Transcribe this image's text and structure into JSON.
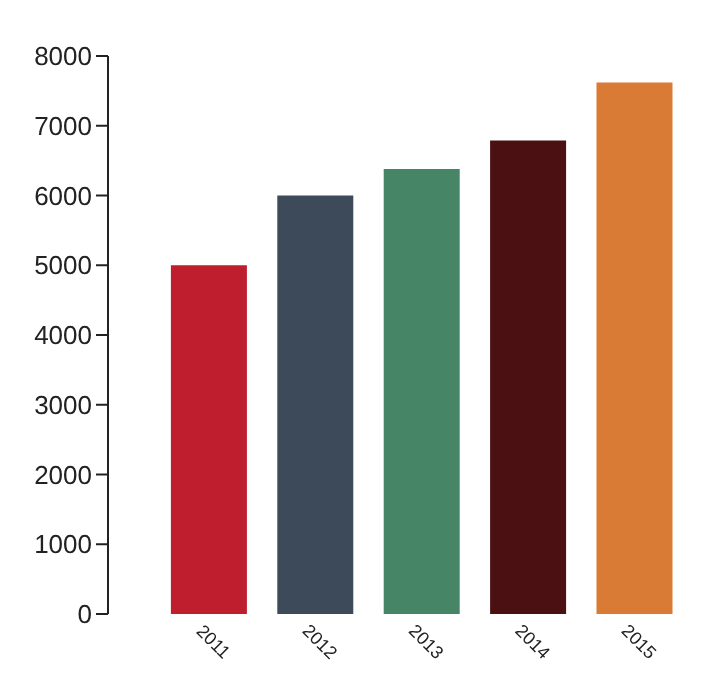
{
  "chart_data": {
    "type": "bar",
    "categories": [
      "2011",
      "2012",
      "2013",
      "2014",
      "2015"
    ],
    "values": [
      5000,
      6000,
      6380,
      6790,
      7620
    ],
    "colors": [
      "#be1e2d",
      "#3d4a5a",
      "#468565",
      "#4b1012",
      "#d97a35"
    ],
    "ylim": [
      0,
      8000
    ],
    "yticks": [
      0,
      1000,
      2000,
      3000,
      4000,
      5000,
      6000,
      7000,
      8000
    ],
    "grid": false,
    "legend": false
  }
}
